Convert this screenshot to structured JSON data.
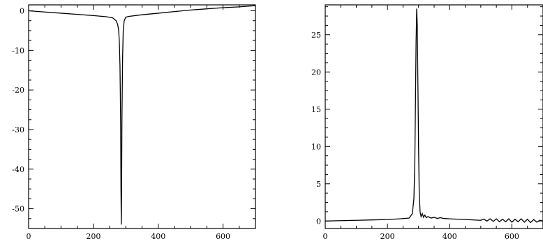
{
  "chart_data": [
    {
      "type": "line",
      "title": "",
      "xlabel": "",
      "ylabel": "",
      "xlim": [
        0,
        700
      ],
      "ylim": [
        -55,
        1.5
      ],
      "grid": false,
      "x_ticks": [
        0,
        200,
        400,
        600
      ],
      "x_tick_labels": [
        "0",
        "200",
        "400",
        "600"
      ],
      "y_ticks": [
        0,
        -10,
        -20,
        -30,
        -40,
        -50
      ],
      "y_tick_labels": [
        "0",
        "-10",
        "-20",
        "-30",
        "-40",
        "-50"
      ],
      "series": [
        {
          "x": [
            0,
            50,
            100,
            150,
            200,
            240,
            260,
            270,
            275,
            278,
            280,
            282,
            284,
            285,
            286,
            287,
            288,
            290,
            292,
            295,
            300,
            310,
            350,
            400,
            450,
            500,
            550,
            600,
            650,
            700
          ],
          "y": [
            0,
            -0.3,
            -0.6,
            -0.9,
            -1.2,
            -1.5,
            -1.8,
            -2.5,
            -3.5,
            -5,
            -8,
            -14,
            -28,
            -45,
            -54,
            -45,
            -28,
            -12,
            -5,
            -2.5,
            -1.6,
            -1.4,
            -1.0,
            -0.6,
            -0.2,
            0.2,
            0.5,
            0.8,
            1.0,
            1.3
          ]
        }
      ]
    },
    {
      "type": "line",
      "title": "",
      "xlabel": "",
      "ylabel": "",
      "xlim": [
        0,
        700
      ],
      "ylim": [
        -1,
        29
      ],
      "grid": false,
      "x_ticks": [
        0,
        200,
        400,
        600
      ],
      "x_tick_labels": [
        "0",
        "200",
        "400",
        "600"
      ],
      "y_ticks": [
        0,
        5,
        10,
        15,
        20,
        25
      ],
      "y_tick_labels": [
        "0",
        "5",
        "10",
        "15",
        "20",
        "25"
      ],
      "series": [
        {
          "x": [
            0,
            50,
            100,
            150,
            200,
            240,
            270,
            280,
            285,
            288,
            290,
            292,
            294,
            296,
            298,
            300,
            302,
            305,
            308,
            312,
            316,
            320,
            325,
            330,
            340,
            350,
            360,
            370,
            380,
            400,
            450,
            500,
            510,
            520,
            530,
            540,
            550,
            560,
            570,
            580,
            590,
            600,
            610,
            620,
            630,
            640,
            650,
            660,
            670,
            680,
            690,
            700
          ],
          "y": [
            0.0,
            0.05,
            0.1,
            0.15,
            0.2,
            0.3,
            0.4,
            1.0,
            3.0,
            8.0,
            16.0,
            24.0,
            28.5,
            26.0,
            18.0,
            10.0,
            4.0,
            1.2,
            0.6,
            1.0,
            0.5,
            0.8,
            0.45,
            0.6,
            0.4,
            0.5,
            0.35,
            0.45,
            0.35,
            0.3,
            0.2,
            0.1,
            0.25,
            0.0,
            0.3,
            -0.05,
            0.3,
            -0.1,
            0.25,
            -0.1,
            0.3,
            -0.15,
            0.25,
            -0.1,
            0.3,
            -0.15,
            0.25,
            -0.2,
            0.2,
            -0.15,
            0.1,
            0.0
          ]
        }
      ]
    }
  ]
}
